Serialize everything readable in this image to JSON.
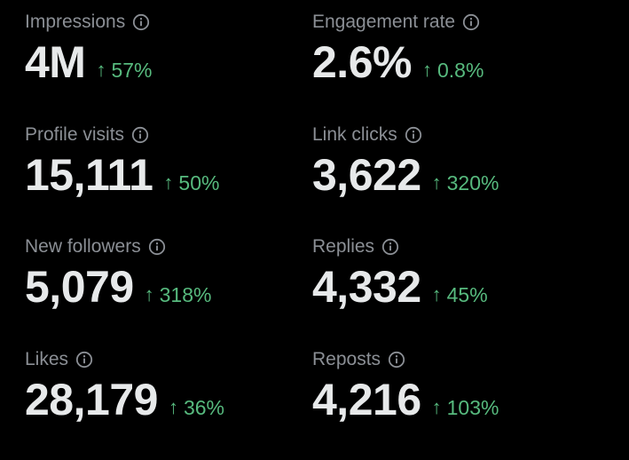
{
  "colors": {
    "background": "#000000",
    "label": "#8b8f95",
    "value": "#e7e9ea",
    "positive": "#57ba7e"
  },
  "icons": {
    "info": "info-circle-icon",
    "trend": "arrow-up-icon",
    "trend_glyph": "↑"
  },
  "metrics": [
    {
      "label": "Impressions",
      "value": "4M",
      "change": "57%"
    },
    {
      "label": "Engagement rate",
      "value": "2.6%",
      "change": "0.8%"
    },
    {
      "label": "Profile visits",
      "value": "15,111",
      "change": "50%"
    },
    {
      "label": "Link clicks",
      "value": "3,622",
      "change": "320%"
    },
    {
      "label": "New followers",
      "value": "5,079",
      "change": "318%"
    },
    {
      "label": "Replies",
      "value": "4,332",
      "change": "45%"
    },
    {
      "label": "Likes",
      "value": "28,179",
      "change": "36%"
    },
    {
      "label": "Reposts",
      "value": "4,216",
      "change": "103%"
    }
  ]
}
